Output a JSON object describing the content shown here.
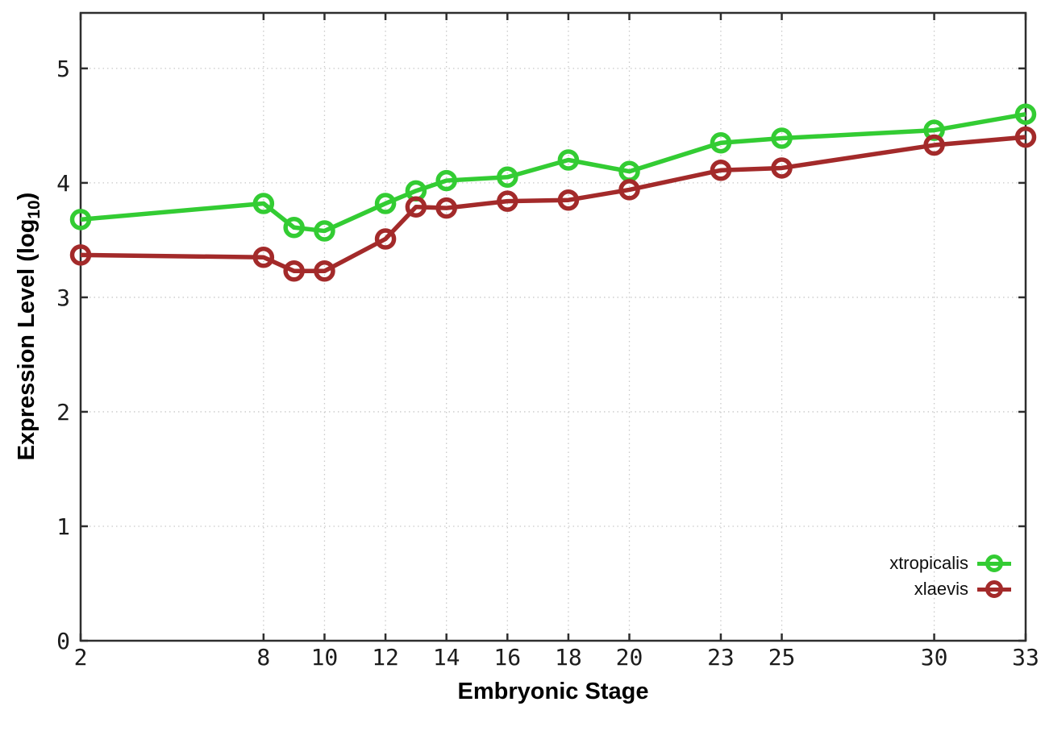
{
  "page": {
    "background": "#ffffff"
  },
  "axes": {
    "x_label": "Embryonic Stage",
    "y_label_prefix": "Expression Level (log",
    "y_label_sub": "10",
    "y_label_suffix": ")"
  },
  "legend": {
    "items": [
      {
        "label": "xtropicalis",
        "color": "#33CC33"
      },
      {
        "label": "xlaevis",
        "color": "#A32A2A"
      }
    ]
  },
  "colors": {
    "grid": "#c9c9c9",
    "border": "#2e2e2e",
    "tick_text": "#1c1c1c"
  },
  "chart_data": {
    "type": "line",
    "title": "",
    "xlabel": "Embryonic Stage",
    "ylabel": "Expression Level (log10)",
    "x": [
      2,
      8,
      9,
      10,
      12,
      13,
      14,
      16,
      18,
      20,
      23,
      25,
      30,
      33
    ],
    "series": [
      {
        "name": "xtropicalis",
        "color": "#33CC33",
        "values": [
          3.68,
          3.82,
          3.61,
          3.58,
          3.82,
          3.93,
          4.02,
          4.05,
          4.2,
          4.1,
          4.35,
          4.39,
          4.46,
          4.6
        ]
      },
      {
        "name": "xlaevis",
        "color": "#A32A2A",
        "values": [
          3.37,
          3.35,
          3.23,
          3.23,
          3.51,
          3.79,
          3.78,
          3.84,
          3.85,
          3.94,
          4.11,
          4.13,
          4.33,
          4.4
        ]
      }
    ],
    "x_ticks": [
      2,
      8,
      10,
      12,
      14,
      16,
      18,
      20,
      23,
      25,
      30,
      33
    ],
    "y_ticks": [
      0,
      1,
      2,
      3,
      4,
      5
    ],
    "xlim": [
      2,
      33
    ],
    "ylim": [
      0,
      5.485
    ],
    "grid": true,
    "marker": "open-circle",
    "legend_position": "inside-bottom-right"
  }
}
